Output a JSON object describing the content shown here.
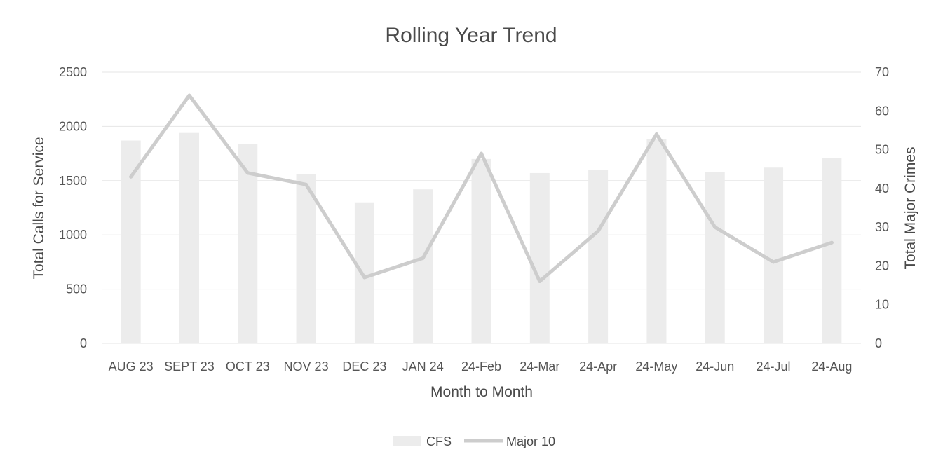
{
  "chart_data": {
    "type": "bar+line",
    "title": "Rolling Year Trend",
    "xlabel": "Month to Month",
    "ylabel_left": "Total Calls for Service",
    "ylabel_right": "Total Major Crimes",
    "ylim_left": [
      0,
      2500
    ],
    "yticks_left": [
      "0",
      "500",
      "1000",
      "1500",
      "2000",
      "2500"
    ],
    "ylim_right": [
      0,
      70
    ],
    "yticks_right": [
      "0",
      "10",
      "20",
      "30",
      "40",
      "50",
      "60",
      "70"
    ],
    "categories": [
      "AUG 23",
      "SEPT 23",
      "OCT 23",
      "NOV 23",
      "DEC 23",
      "JAN 24",
      "24-Feb",
      "24-Mar",
      "24-Apr",
      "24-May",
      "24-Jun",
      "24-Jul",
      "24-Aug"
    ],
    "series": [
      {
        "name": "CFS",
        "type": "bar",
        "axis": "left",
        "color": "#ececec",
        "values": [
          1870,
          1940,
          1840,
          1560,
          1300,
          1420,
          1700,
          1570,
          1600,
          1880,
          1580,
          1620,
          1710
        ]
      },
      {
        "name": "Major 10",
        "type": "line",
        "axis": "right",
        "color": "#cdcdcd",
        "values": [
          43,
          64,
          44,
          41,
          17,
          22,
          49,
          16,
          29,
          54,
          30,
          21,
          26
        ]
      }
    ],
    "grid": true,
    "legend": "bottom-center"
  }
}
